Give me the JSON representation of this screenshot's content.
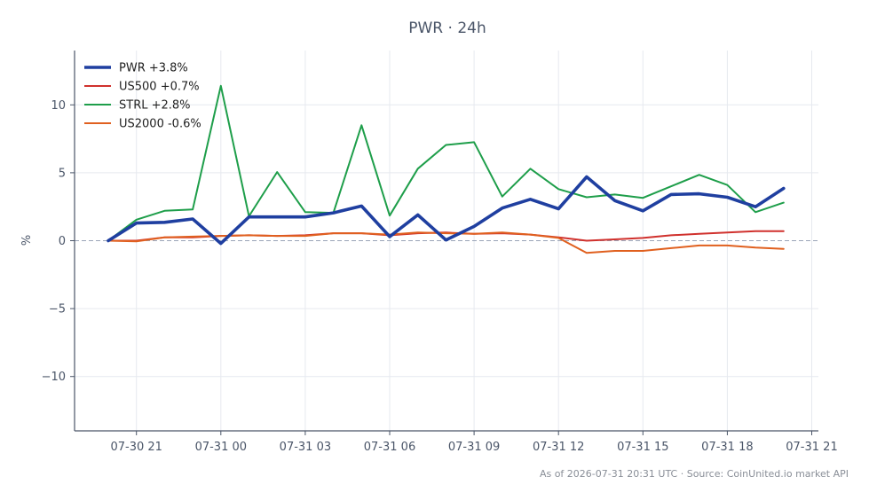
{
  "chart_data": {
    "type": "line",
    "title": "PWR · 24h",
    "xlabel": "",
    "ylabel": "%",
    "footer": "As of 2026-07-31 20:31 UTC · Source: CoinUnited.io market API",
    "x_ticks": [
      "07-30 21",
      "07-31 00",
      "07-31 03",
      "07-31 06",
      "07-31 09",
      "07-31 12",
      "07-31 15",
      "07-31 18",
      "07-31 21"
    ],
    "y_ticks": [
      "10",
      "5",
      "0",
      "−5",
      "−10"
    ],
    "y_tick_values": [
      10,
      5,
      0,
      -5,
      -10
    ],
    "ylim": [
      -14,
      14
    ],
    "x_start": "07-30 20:00",
    "x_step_hours": 1,
    "grid": true,
    "legend_position": "top-left",
    "zero_line": {
      "value": 0,
      "style": "dashed",
      "color": "#9aa5b8"
    },
    "series": [
      {
        "name": "PWR +3.8%",
        "color": "#1f3fa0",
        "width": "thick",
        "values": [
          0.0,
          1.3,
          1.35,
          1.6,
          -0.2,
          1.75,
          1.75,
          1.75,
          2.05,
          2.55,
          0.3,
          1.9,
          0.05,
          1.05,
          2.4,
          3.05,
          2.35,
          4.7,
          2.95,
          2.2,
          3.4,
          3.45,
          3.2,
          2.5,
          3.85
        ]
      },
      {
        "name": "US500 +0.7%",
        "color": "#d0312d",
        "width": "normal",
        "values": [
          0.0,
          0.0,
          0.25,
          0.25,
          0.35,
          0.4,
          0.35,
          0.4,
          0.55,
          0.55,
          0.4,
          0.55,
          0.6,
          0.5,
          0.55,
          0.45,
          0.25,
          0.0,
          0.1,
          0.2,
          0.4,
          0.5,
          0.6,
          0.7,
          0.7
        ]
      },
      {
        "name": "STRL +2.8%",
        "color": "#1e9e4a",
        "width": "normal",
        "values": [
          0.0,
          1.55,
          2.2,
          2.3,
          11.4,
          1.8,
          5.05,
          2.1,
          2.05,
          8.5,
          1.85,
          5.3,
          7.05,
          7.25,
          3.25,
          5.3,
          3.8,
          3.2,
          3.4,
          3.15,
          4.0,
          4.85,
          4.1,
          2.1,
          2.8
        ]
      },
      {
        "name": "US2000 -0.6%",
        "color": "#e0601f",
        "width": "normal",
        "values": [
          0.0,
          -0.05,
          0.25,
          0.3,
          0.35,
          0.4,
          0.35,
          0.35,
          0.55,
          0.55,
          0.45,
          0.6,
          0.55,
          0.5,
          0.6,
          0.45,
          0.2,
          -0.9,
          -0.75,
          -0.75,
          -0.55,
          -0.35,
          -0.35,
          -0.5,
          -0.6
        ]
      }
    ]
  }
}
